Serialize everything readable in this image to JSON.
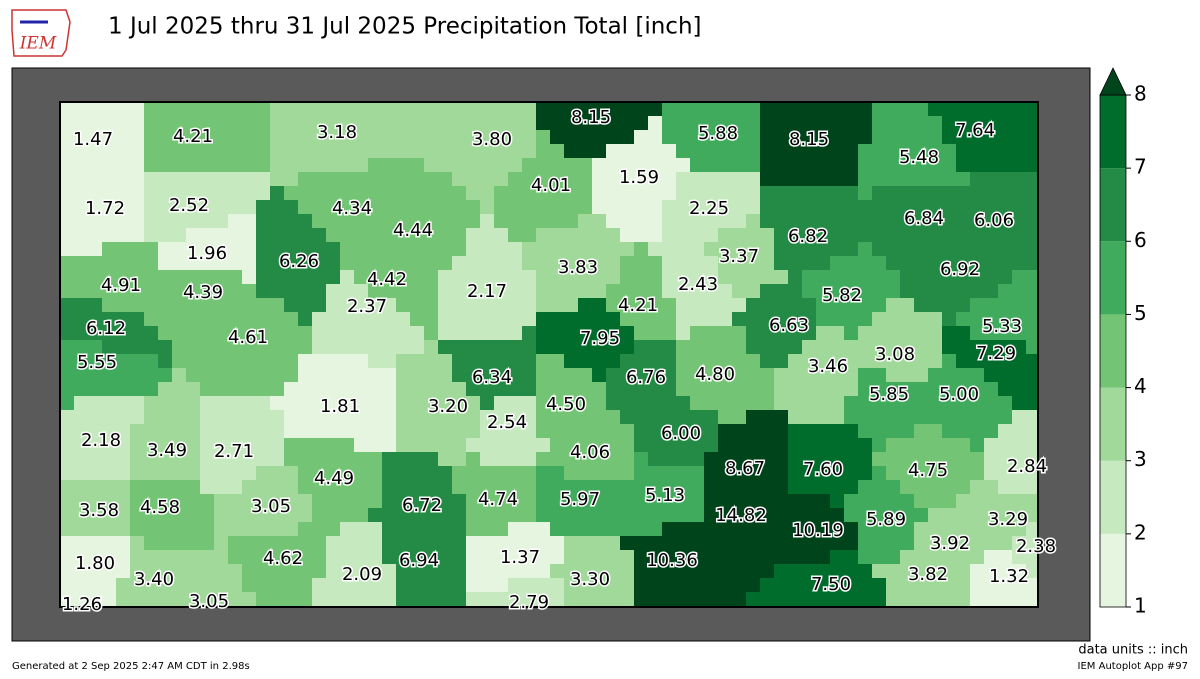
{
  "title": "1 Jul 2025 thru 31 Jul 2025 Precipitation Total [inch]",
  "logo": "IEM",
  "chart_data": {
    "type": "map",
    "values": [
      1.47,
      4.21,
      3.18,
      3.8,
      8.15,
      5.88,
      8.15,
      7.64,
      5.48,
      1.72,
      2.52,
      4.34,
      4.44,
      4.01,
      1.59,
      2.25,
      6.84,
      6.06,
      1.96,
      6.26,
      6.82,
      3.37,
      3.83,
      6.92,
      4.91,
      4.39,
      4.42,
      2.17,
      2.43,
      2.37,
      4.21,
      5.82,
      6.12,
      4.61,
      6.63,
      5.33,
      7.95,
      3.08,
      7.29,
      5.55,
      6.34,
      6.76,
      4.8,
      3.46,
      5.85,
      5.0,
      1.81,
      3.2,
      4.5,
      2.54,
      6.0,
      2.18,
      3.49,
      2.71,
      4.06,
      8.67,
      7.6,
      4.75,
      2.84,
      4.49,
      6.72,
      4.74,
      5.97,
      5.13,
      3.58,
      4.58,
      3.05,
      14.82,
      10.19,
      5.89,
      3.29,
      3.92,
      2.38,
      4.62,
      6.94,
      1.37,
      10.36,
      1.8,
      3.4,
      2.09,
      3.3,
      7.5,
      3.82,
      1.32,
      1.26,
      3.05,
      2.79
    ],
    "value_labels": [
      "1.47",
      "4.21",
      "3.18",
      "3.80",
      "8.15",
      "5.88",
      "8.15",
      "7.64",
      "5.48",
      "1.72",
      "2.52",
      "4.34",
      "4.44",
      "4.01",
      "1.59",
      "2.25",
      "6.84",
      "6.06",
      "1.96",
      "6.26",
      "6.82",
      "3.37",
      "3.83",
      "6.92",
      "4.91",
      "4.39",
      "4.42",
      "2.17",
      "2.43",
      "2.37",
      "4.21",
      "5.82",
      "6.12",
      "4.61",
      "6.63",
      "5.33",
      "7.95",
      "3.08",
      "7.29",
      "5.55",
      "6.34",
      "6.76",
      "4.80",
      "3.46",
      "5.85",
      "5.00",
      "1.81",
      "3.20",
      "4.50",
      "2.54",
      "6.00",
      "2.18",
      "3.49",
      "2.71",
      "4.06",
      "8.67",
      "7.60",
      "4.75",
      "2.84",
      "4.49",
      "6.72",
      "4.74",
      "5.97",
      "5.13",
      "3.58",
      "4.58",
      "3.05",
      "14.82",
      "10.19",
      "5.89",
      "3.29",
      "3.92",
      "2.38",
      "4.62",
      "6.94",
      "1.37",
      "10.36",
      "1.80",
      "3.40",
      "2.09",
      "3.30",
      "7.50",
      "3.82",
      "1.32",
      "1.26",
      "3.05",
      "2.79"
    ],
    "clim": [
      1,
      8
    ],
    "cticks": [
      1,
      2,
      3,
      4,
      5,
      6,
      7,
      8
    ],
    "colors": [
      "#e5f5e0",
      "#c7e9c0",
      "#a1d99b",
      "#74c476",
      "#41ab5d",
      "#238b45",
      "#006d2c"
    ],
    "over_color": "#00441b",
    "units_label": "data units :: inch"
  },
  "footer": {
    "generated": "Generated at 2 Sep 2025 2:47 AM CDT in 2.98s",
    "app": "IEM Autoplot App #97"
  }
}
